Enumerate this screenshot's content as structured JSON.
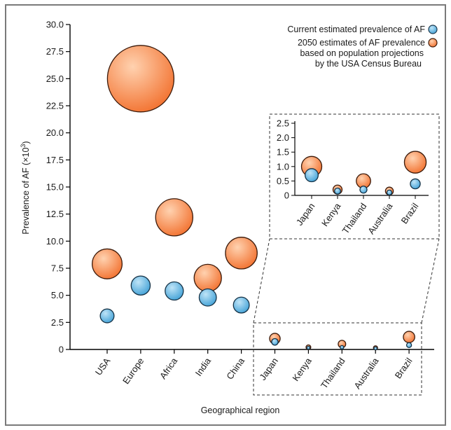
{
  "colors": {
    "current": "#3fa0d6",
    "current_light": "#bfe4f7",
    "future": "#f26f2c",
    "future_light": "#ffd2b0",
    "border": "#7a7a7a",
    "axis": "#000000"
  },
  "chart_data": [
    {
      "type": "scatter",
      "subtype": "bubble",
      "title": "",
      "xlabel": "Geographical region",
      "ylabel": "Prevalence of AF (×10³)",
      "ylabel_parts": {
        "main": "Prevalence of AF (×10",
        "sup": "3",
        "close": ")"
      },
      "categories": [
        "USA",
        "Europe",
        "Africa",
        "India",
        "China",
        "Japan",
        "Kenya",
        "Thailand",
        "Australia",
        "Brazil"
      ],
      "ylim": [
        0,
        30
      ],
      "yticks": [
        "0",
        "2.5",
        "5.0",
        "7.5",
        "10.0",
        "12.5",
        "15.0",
        "17.5",
        "20.0",
        "22.5",
        "25.0",
        "27.5",
        "30.0"
      ],
      "legend_position": "top-right",
      "series": [
        {
          "name": "Current estimated prevalence of AF",
          "color_key": "current",
          "values": [
            3.1,
            5.9,
            5.4,
            4.8,
            4.1,
            0.7,
            0.15,
            0.2,
            0.1,
            0.4
          ]
        },
        {
          "name": "2050 estimates of AF prevalence based on population projections by the USA Census Bureau",
          "legend_lines": [
            "2050 estimates of AF prevalence",
            "based on population projections",
            "by the USA Census Bureau"
          ],
          "color_key": "future",
          "values": [
            7.9,
            null,
            12.2,
            6.6,
            8.9,
            1.0,
            0.2,
            0.5,
            0.15,
            1.15
          ],
          "extra_points": [
            {
              "category": "Europe",
              "value": 25.0
            }
          ]
        }
      ]
    },
    {
      "type": "scatter",
      "subtype": "bubble",
      "title": "",
      "categories": [
        "Japan",
        "Kenya",
        "Thailand",
        "Australia",
        "Brazil"
      ],
      "ylim": [
        0,
        2.5
      ],
      "yticks": [
        "0",
        "0.5",
        "1.0",
        "1.5",
        "2.0",
        "2.5"
      ],
      "series": [
        {
          "name": "Current estimated prevalence of AF",
          "color_key": "current",
          "values": [
            0.7,
            0.15,
            0.2,
            0.1,
            0.4
          ]
        },
        {
          "name": "2050 estimates of AF prevalence",
          "color_key": "future",
          "values": [
            1.0,
            0.2,
            0.5,
            0.15,
            1.15
          ]
        }
      ]
    }
  ]
}
